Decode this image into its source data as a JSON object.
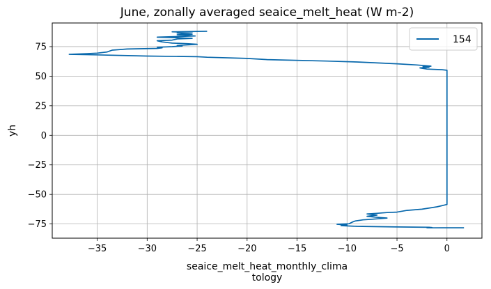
{
  "chart_data": {
    "type": "line",
    "title": "June, zonally averaged seaice_melt_heat (W m-2)",
    "xlabel_line1": "seaice_melt_heat_monthly_clima",
    "xlabel_line2": "tology",
    "ylabel": "yh",
    "xlim": [
      -39.5,
      3.5
    ],
    "ylim": [
      -87,
      95
    ],
    "xticks": [
      -35,
      -30,
      -25,
      -20,
      -15,
      -10,
      -5,
      0
    ],
    "xtick_labels": [
      "−35",
      "−30",
      "−25",
      "−20",
      "−15",
      "−10",
      "−5",
      "0"
    ],
    "yticks": [
      -75,
      -50,
      -25,
      0,
      25,
      50,
      75
    ],
    "ytick_labels": [
      "−75",
      "−50",
      "−25",
      "0",
      "25",
      "50",
      "75"
    ],
    "grid": true,
    "legend_position": "top-right",
    "series": [
      {
        "name": "154",
        "color": "#0868ac",
        "points": [
          [
            1.7,
            -78.2
          ],
          [
            -2,
            -78.3
          ],
          [
            -1.5,
            -78.0
          ],
          [
            -1.8,
            -77.8
          ],
          [
            -5,
            -77.5
          ],
          [
            -9,
            -77
          ],
          [
            -10.6,
            -76.4
          ],
          [
            -10,
            -75.8
          ],
          [
            -11,
            -75.2
          ],
          [
            -9.8,
            -74.8
          ],
          [
            -9.5,
            -73.5
          ],
          [
            -9.2,
            -72.5
          ],
          [
            -8.4,
            -71.5
          ],
          [
            -7.5,
            -71
          ],
          [
            -6,
            -70
          ],
          [
            -7.2,
            -69.2
          ],
          [
            -8,
            -68.5
          ],
          [
            -7,
            -67.5
          ],
          [
            -8,
            -66.5
          ],
          [
            -7,
            -66
          ],
          [
            -6,
            -65.3
          ],
          [
            -5,
            -65
          ],
          [
            -4,
            -63.5
          ],
          [
            -2.5,
            -62.5
          ],
          [
            -1,
            -60.5
          ],
          [
            0,
            -58.5
          ],
          [
            0,
            -58
          ],
          [
            0,
            0
          ],
          [
            0,
            55
          ],
          [
            -0.5,
            55.5
          ],
          [
            -2,
            56
          ],
          [
            -2.7,
            57
          ],
          [
            -1.8,
            57.5
          ],
          [
            -2.4,
            58
          ],
          [
            -1.6,
            58.5
          ],
          [
            -3,
            59.5
          ],
          [
            -5,
            60.5
          ],
          [
            -9,
            62
          ],
          [
            -12,
            62.8
          ],
          [
            -18,
            64
          ],
          [
            -20,
            65
          ],
          [
            -24,
            66
          ],
          [
            -25,
            66.5
          ],
          [
            -30,
            67
          ],
          [
            -35,
            68
          ],
          [
            -37.8,
            68.5
          ],
          [
            -36,
            69
          ],
          [
            -35,
            69.5
          ],
          [
            -34,
            70.5
          ],
          [
            -33.5,
            72
          ],
          [
            -32,
            73
          ],
          [
            -29,
            73.5
          ],
          [
            -28.5,
            74
          ],
          [
            -29,
            74.5
          ],
          [
            -27.5,
            75
          ],
          [
            -26.5,
            75.5
          ],
          [
            -27,
            76
          ],
          [
            -25,
            77
          ],
          [
            -26,
            77.5
          ],
          [
            -27.5,
            78
          ],
          [
            -28.5,
            79
          ],
          [
            -29,
            80
          ],
          [
            -27.5,
            80.5
          ],
          [
            -27,
            81.5
          ],
          [
            -25.5,
            82
          ],
          [
            -27,
            82.5
          ],
          [
            -29,
            83
          ],
          [
            -27,
            83.5
          ],
          [
            -25.2,
            84
          ],
          [
            -26,
            84.5
          ],
          [
            -27,
            85
          ],
          [
            -25.5,
            85.5
          ],
          [
            -26.5,
            86
          ],
          [
            -27,
            86.5
          ],
          [
            -25.5,
            87
          ],
          [
            -27.5,
            87.5
          ],
          [
            -24,
            88
          ]
        ]
      }
    ]
  }
}
